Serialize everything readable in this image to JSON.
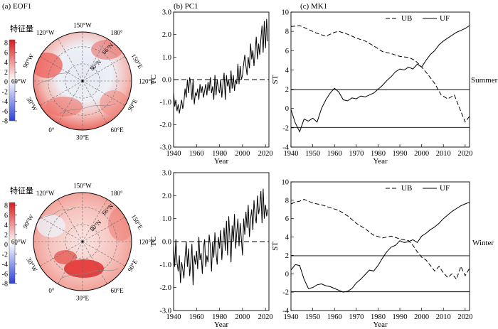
{
  "panel_labels": {
    "a": "(a) EOF1",
    "b": "(b) PC1",
    "c": "(c) MK1"
  },
  "season_labels": {
    "summer": "Summer",
    "winter": "Winter"
  },
  "colorbar": {
    "title": "特征量",
    "ticks": [
      "8",
      "6",
      "4",
      "2",
      "0",
      "-2",
      "-4",
      "-6",
      "-8"
    ],
    "colors": {
      "max": "#d7191c",
      "mid": "#ffffff",
      "min": "#2b3fd6"
    }
  },
  "map_labels": {
    "lon": [
      "150°W",
      "180°",
      "150°E",
      "120°E",
      "90°E",
      "60°E",
      "30°E",
      "0°",
      "30°W",
      "60°W",
      "90°W",
      "120°W"
    ],
    "lat": [
      "66°N",
      "80°N"
    ]
  },
  "chart_data": [
    {
      "id": "pc1-summer",
      "type": "line",
      "title": "(b) PC1",
      "xlabel": "Year",
      "ylabel": "TC",
      "xlim": [
        1940,
        2023
      ],
      "ylim": [
        -3.0,
        3.0
      ],
      "xticks": [
        1940,
        1960,
        1980,
        2000,
        2020
      ],
      "yticks": [
        -3.0,
        -2.0,
        -1.0,
        0.0,
        1.0,
        2.0,
        3.0
      ],
      "reference_line": 0.0,
      "x": [
        1940,
        1941,
        1942,
        1943,
        1944,
        1945,
        1946,
        1947,
        1948,
        1949,
        1950,
        1951,
        1952,
        1953,
        1954,
        1955,
        1956,
        1957,
        1958,
        1959,
        1960,
        1961,
        1962,
        1963,
        1964,
        1965,
        1966,
        1967,
        1968,
        1969,
        1970,
        1971,
        1972,
        1973,
        1974,
        1975,
        1976,
        1977,
        1978,
        1979,
        1980,
        1981,
        1982,
        1983,
        1984,
        1985,
        1986,
        1987,
        1988,
        1989,
        1990,
        1991,
        1992,
        1993,
        1994,
        1995,
        1996,
        1997,
        1998,
        1999,
        2000,
        2001,
        2002,
        2003,
        2004,
        2005,
        2006,
        2007,
        2008,
        2009,
        2010,
        2011,
        2012,
        2013,
        2014,
        2015,
        2016,
        2017,
        2018,
        2019,
        2020,
        2021,
        2022
      ],
      "values": [
        -0.6,
        -1.2,
        -0.9,
        -1.4,
        -1.1,
        -1.5,
        -1.2,
        -0.9,
        -1.3,
        -1.0,
        -0.4,
        -0.8,
        0.0,
        -0.6,
        0.1,
        -0.2,
        -0.9,
        0.0,
        -1.1,
        -0.6,
        -0.7,
        -0.4,
        -0.9,
        -0.2,
        -0.6,
        -0.3,
        -0.8,
        -0.5,
        -0.2,
        -0.7,
        -0.1,
        -0.5,
        0.1,
        -0.6,
        -0.3,
        -0.9,
        0.2,
        -0.7,
        0.0,
        -0.4,
        -0.6,
        0.0,
        -0.8,
        -0.2,
        0.3,
        -0.9,
        0.2,
        -0.3,
        0.0,
        -0.6,
        0.4,
        -0.4,
        0.2,
        -0.5,
        0.0,
        -0.2,
        0.7,
        -0.2,
        0.6,
        0.0,
        0.2,
        0.7,
        1.1,
        0.6,
        0.2,
        1.0,
        0.5,
        1.6,
        0.9,
        1.3,
        0.6,
        1.2,
        1.9,
        0.9,
        1.6,
        1.1,
        1.8,
        2.4,
        1.2,
        2.6,
        1.4,
        2.7,
        1.7
      ]
    },
    {
      "id": "pc1-winter",
      "type": "line",
      "title": "",
      "xlabel": "Year",
      "ylabel": "TC",
      "xlim": [
        1940,
        2023
      ],
      "ylim": [
        -3.0,
        3.0
      ],
      "xticks": [
        1940,
        1960,
        1980,
        2000,
        2020
      ],
      "yticks": [
        -3.0,
        -2.0,
        -1.0,
        0.0,
        1.0,
        2.0,
        3.0
      ],
      "reference_line": 0.0,
      "x": [
        1940,
        1941,
        1942,
        1943,
        1944,
        1945,
        1946,
        1947,
        1948,
        1949,
        1950,
        1951,
        1952,
        1953,
        1954,
        1955,
        1956,
        1957,
        1958,
        1959,
        1960,
        1961,
        1962,
        1963,
        1964,
        1965,
        1966,
        1967,
        1968,
        1969,
        1970,
        1971,
        1972,
        1973,
        1974,
        1975,
        1976,
        1977,
        1978,
        1979,
        1980,
        1981,
        1982,
        1983,
        1984,
        1985,
        1986,
        1987,
        1988,
        1989,
        1990,
        1991,
        1992,
        1993,
        1994,
        1995,
        1996,
        1997,
        1998,
        1999,
        2000,
        2001,
        2002,
        2003,
        2004,
        2005,
        2006,
        2007,
        2008,
        2009,
        2010,
        2011,
        2012,
        2013,
        2014,
        2015,
        2016,
        2017,
        2018,
        2019,
        2020,
        2021,
        2022
      ],
      "values": [
        -0.2,
        -1.1,
        0.1,
        -0.9,
        -1.3,
        -0.6,
        -1.8,
        -0.9,
        -1.2,
        -1.6,
        -0.7,
        0.0,
        -1.1,
        -0.3,
        -1.5,
        -0.9,
        -0.1,
        -1.9,
        -0.6,
        -1.0,
        -0.4,
        -1.2,
        0.2,
        -0.8,
        -0.5,
        -1.4,
        -0.3,
        0.1,
        -1.1,
        -0.6,
        -0.9,
        0.3,
        -0.2,
        -1.3,
        0.0,
        -0.7,
        0.4,
        -0.5,
        -1.0,
        0.2,
        -0.3,
        0.5,
        -0.8,
        0.0,
        0.6,
        -0.4,
        0.9,
        -0.6,
        1.1,
        0.2,
        -0.9,
        0.7,
        0.0,
        1.2,
        -0.3,
        0.4,
        1.0,
        -0.2,
        0.8,
        0.1,
        -0.6,
        1.0,
        0.3,
        1.3,
        0.6,
        1.6,
        0.2,
        1.0,
        1.4,
        0.5,
        1.8,
        1.1,
        0.8,
        2.0,
        1.2,
        1.5,
        2.2,
        0.8,
        2.3,
        1.0,
        1.6,
        1.1,
        1.4
      ]
    },
    {
      "id": "mk1-summer",
      "type": "line",
      "title": "(c) MK1",
      "xlabel": "Year",
      "ylabel": "ST",
      "xlim": [
        1940,
        2022
      ],
      "ylim": [
        -4,
        10
      ],
      "xticks": [
        1940,
        1950,
        1960,
        1970,
        1980,
        1990,
        2000,
        2010,
        2020
      ],
      "yticks": [
        -4,
        -2,
        0,
        2,
        4,
        6,
        8,
        10
      ],
      "thresholds": [
        1.96,
        -1.96
      ],
      "legend": [
        "UB",
        "UF"
      ],
      "series": [
        {
          "name": "UB",
          "style": "dashed",
          "x": [
            1940,
            1944,
            1948,
            1952,
            1956,
            1960,
            1962,
            1966,
            1970,
            1974,
            1978,
            1982,
            1986,
            1990,
            1994,
            1997,
            2000,
            2003,
            2006,
            2009,
            2012,
            2015,
            2018,
            2020,
            2022
          ],
          "values": [
            8.5,
            8.6,
            8.2,
            7.8,
            7.5,
            7.9,
            8.0,
            7.7,
            7.3,
            7.0,
            6.5,
            5.9,
            5.7,
            5.4,
            5.3,
            5.0,
            4.3,
            3.5,
            2.6,
            1.4,
            1.0,
            1.4,
            -0.3,
            -1.4,
            -0.8
          ]
        },
        {
          "name": "UF",
          "style": "solid",
          "x": [
            1940,
            1942,
            1944,
            1946,
            1948,
            1950,
            1952,
            1954,
            1956,
            1958,
            1960,
            1962,
            1964,
            1966,
            1968,
            1970,
            1972,
            1974,
            1976,
            1978,
            1980,
            1982,
            1984,
            1986,
            1988,
            1990,
            1992,
            1994,
            1996,
            1998,
            2000,
            2002,
            2004,
            2006,
            2008,
            2010,
            2012,
            2014,
            2016,
            2018,
            2020,
            2022
          ],
          "values": [
            -0.1,
            -1.5,
            -2.4,
            -1.1,
            -1.3,
            -1.0,
            -1.4,
            0.0,
            0.9,
            1.6,
            2.1,
            1.7,
            0.9,
            0.8,
            1.1,
            1.0,
            1.3,
            1.2,
            1.4,
            1.6,
            2.0,
            2.4,
            2.9,
            3.3,
            3.8,
            4.1,
            4.0,
            4.3,
            4.1,
            4.6,
            4.3,
            5.0,
            5.6,
            6.0,
            6.6,
            7.0,
            7.3,
            7.6,
            7.9,
            8.1,
            8.3,
            8.6
          ]
        }
      ]
    },
    {
      "id": "mk1-winter",
      "type": "line",
      "title": "",
      "xlabel": "Year",
      "ylabel": "ST",
      "xlim": [
        1940,
        2022
      ],
      "ylim": [
        -4,
        10
      ],
      "xticks": [
        1940,
        1950,
        1960,
        1970,
        1980,
        1990,
        2000,
        2010,
        2020
      ],
      "yticks": [
        -4,
        -2,
        0,
        2,
        4,
        6,
        8,
        10
      ],
      "thresholds": [
        1.96,
        -1.96
      ],
      "legend": [
        "UB",
        "UF"
      ],
      "series": [
        {
          "name": "UB",
          "style": "dashed",
          "x": [
            1940,
            1942,
            1944,
            1946,
            1948,
            1950,
            1954,
            1958,
            1962,
            1966,
            1970,
            1974,
            1978,
            1982,
            1986,
            1990,
            1994,
            1996,
            1998,
            2000,
            2002,
            2004,
            2006,
            2008,
            2010,
            2012,
            2014,
            2016,
            2018,
            2020,
            2022
          ],
          "values": [
            7.6,
            7.8,
            7.9,
            8.1,
            7.9,
            7.7,
            7.5,
            7.2,
            6.9,
            6.3,
            5.5,
            4.9,
            4.2,
            3.9,
            4.1,
            3.8,
            3.6,
            3.1,
            2.4,
            1.8,
            1.5,
            0.9,
            0.3,
            0.8,
            0.1,
            -0.4,
            0.0,
            -0.6,
            0.8,
            -0.2,
            0.6
          ]
        },
        {
          "name": "UF",
          "style": "solid",
          "x": [
            1940,
            1942,
            1944,
            1946,
            1948,
            1950,
            1952,
            1954,
            1956,
            1958,
            1960,
            1962,
            1964,
            1966,
            1968,
            1970,
            1972,
            1974,
            1976,
            1978,
            1980,
            1982,
            1984,
            1986,
            1988,
            1990,
            1992,
            1994,
            1996,
            1998,
            2000,
            2002,
            2004,
            2006,
            2008,
            2010,
            2012,
            2014,
            2016,
            2018,
            2020,
            2022
          ],
          "values": [
            0.4,
            1.0,
            0.9,
            -0.6,
            -1.6,
            -1.5,
            -1.2,
            -1.1,
            -1.3,
            -1.4,
            -1.6,
            -1.8,
            -2.0,
            -1.9,
            -1.6,
            -1.0,
            -0.6,
            -0.1,
            0.4,
            0.3,
            0.9,
            1.7,
            2.4,
            2.9,
            3.1,
            3.6,
            3.4,
            3.5,
            3.7,
            3.4,
            4.1,
            4.4,
            4.8,
            5.1,
            5.5,
            6.0,
            6.4,
            6.8,
            7.1,
            7.4,
            7.6,
            7.8
          ]
        }
      ]
    }
  ]
}
